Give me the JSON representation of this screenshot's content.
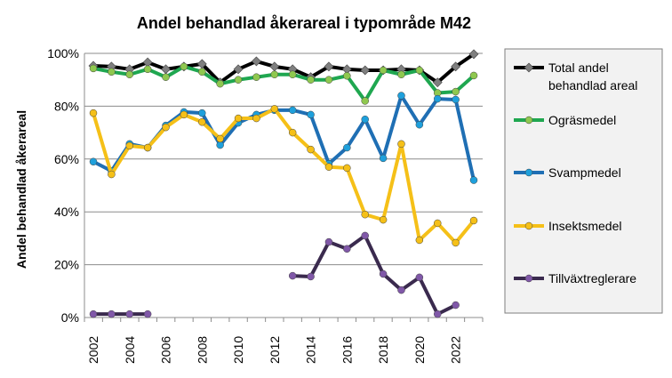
{
  "chart_data": {
    "type": "line",
    "title": "Andel behandlad åkerareal  i typområde  M42",
    "xlabel": "",
    "ylabel": "Andel behandlad åkerareal",
    "ylim": [
      0,
      100
    ],
    "yticks": [
      "0%",
      "20%",
      "40%",
      "60%",
      "80%",
      "100%"
    ],
    "ytick_values": [
      0,
      20,
      40,
      60,
      80,
      100
    ],
    "xticks": [
      "2002",
      "2004",
      "2006",
      "2008",
      "2010",
      "2012",
      "2014",
      "2016",
      "2018",
      "2020",
      "2022"
    ],
    "x": [
      2002,
      2003,
      2004,
      2005,
      2006,
      2007,
      2008,
      2009,
      2010,
      2011,
      2012,
      2013,
      2014,
      2015,
      2016,
      2017,
      2018,
      2019,
      2020,
      2021,
      2022,
      2023
    ],
    "grid": true,
    "legend_placement": "right",
    "series": [
      {
        "name": "Total andel behandlad areal",
        "line_color": "#000000",
        "marker_color": "#7f7f7f",
        "marker": "diamond",
        "values": [
          95.3,
          95,
          94,
          96.6,
          94,
          95,
          96,
          89,
          94,
          97,
          95,
          94,
          91,
          95,
          94,
          93.6,
          93.6,
          94,
          93.6,
          89,
          95,
          99.7
        ]
      },
      {
        "name": "Ogräsmedel",
        "line_color": "#1fa750",
        "marker_color": "#8fc84f",
        "marker": "circle",
        "values": [
          94.3,
          93,
          92,
          94,
          91,
          95,
          93,
          88.5,
          90,
          91,
          92,
          92,
          90,
          90,
          91.5,
          82,
          93.6,
          92,
          93.6,
          85,
          85.5,
          91.6
        ]
      },
      {
        "name": "Svampmedel",
        "line_color": "#1f6fb4",
        "marker_color": "#1ea0dc",
        "marker": "circle",
        "values": [
          59,
          55.5,
          65.7,
          64.3,
          72.7,
          77.8,
          77.4,
          65.3,
          73.7,
          76.8,
          78.5,
          78.5,
          76.8,
          58.2,
          64.3,
          75,
          60.3,
          84,
          73,
          82.8,
          82.5,
          52
        ]
      },
      {
        "name": "Insektsmedel",
        "line_color": "#f5c018",
        "marker_color": "#f5c018",
        "marker": "circle",
        "values": [
          77.4,
          54.2,
          65,
          64.3,
          72,
          76.8,
          74,
          67.7,
          75.4,
          75.4,
          79,
          70,
          63.6,
          57,
          56.6,
          39,
          37,
          65.7,
          29.3,
          35.7,
          28.3,
          36.7
        ]
      },
      {
        "name": "Tillväxtreglerare",
        "line_color": "#3a2a4e",
        "marker_color": "#8058a8",
        "marker": "circle",
        "values": [
          1.3,
          1.3,
          1.3,
          1.3,
          null,
          null,
          null,
          null,
          null,
          null,
          null,
          15.8,
          15.5,
          28.6,
          26,
          31,
          16.5,
          10.4,
          15.2,
          1.3,
          4.7,
          null
        ]
      }
    ]
  }
}
